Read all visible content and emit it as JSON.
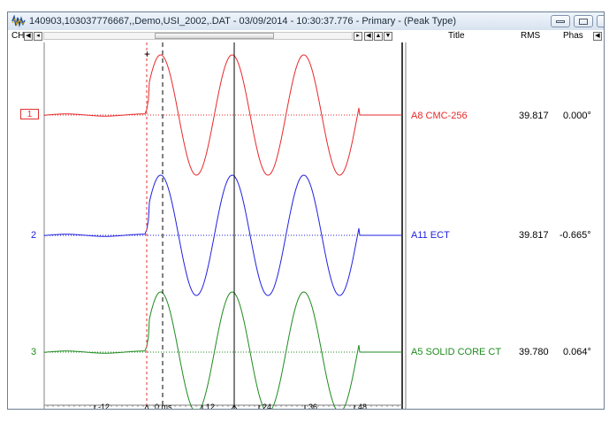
{
  "window": {
    "title": "140903,103037776667,,Demo,USI_2002,.DAT - 03/09/2014 - 10:30:37.776 - Primary - (Peak Type)"
  },
  "header": {
    "ch_label": "CH",
    "title_col": "Title",
    "rms_col": "RMS",
    "phase_col": "Phas"
  },
  "time_axis": {
    "unit_label": "0 ms",
    "ticks": [
      "-12",
      "12",
      "24",
      "36",
      "48"
    ]
  },
  "channels": [
    {
      "number": "1",
      "title": "A8 CMC-256",
      "rms": "39.817",
      "phase": "0.000°",
      "color": "#e8282a"
    },
    {
      "number": "2",
      "title": "A11 ECT",
      "rms": "39.817",
      "phase": "-0.665°",
      "color": "#2020e0"
    },
    {
      "number": "3",
      "title": "A5 SOLID CORE CT",
      "rms": "39.780",
      "phase": "0.064°",
      "color": "#1e8a1e"
    }
  ],
  "colors": {
    "trigger": "#e03030",
    "cursor": "#000000"
  }
}
